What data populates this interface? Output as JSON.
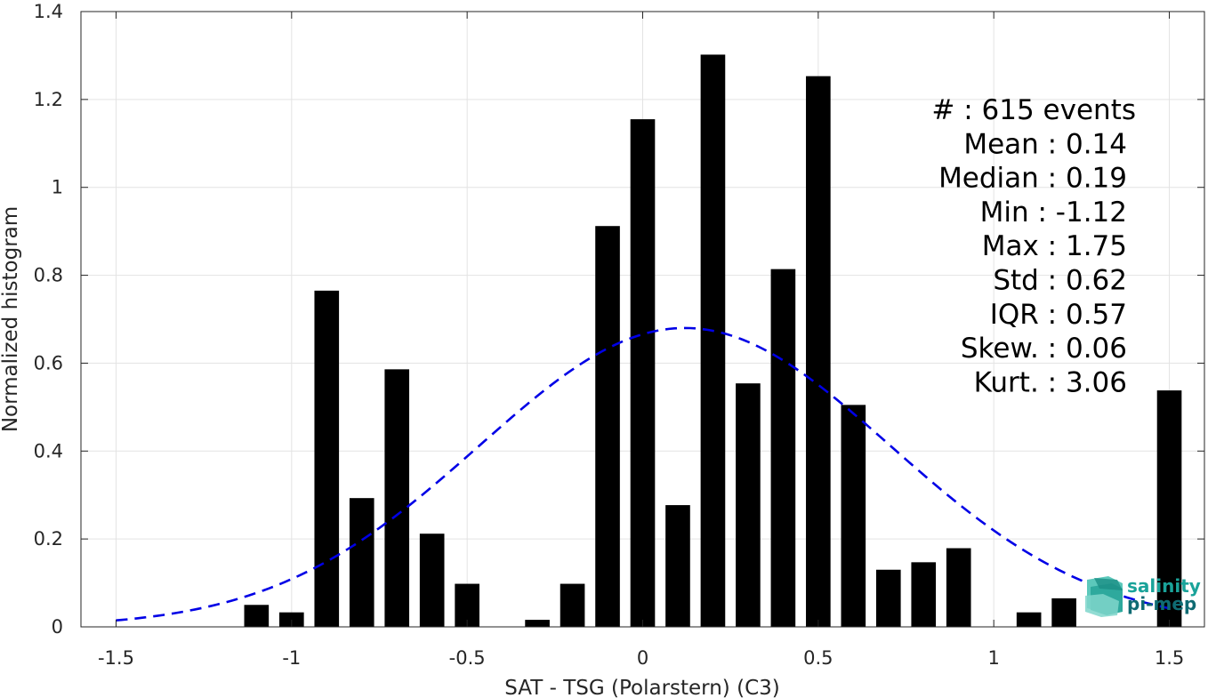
{
  "chart_data": {
    "type": "bar",
    "xlabel": "SAT - TSG (Polarstern) (C3)",
    "ylabel": "Normalized histogram",
    "xlim": [
      -1.6,
      1.6
    ],
    "ylim": [
      0,
      1.4
    ],
    "grid": true,
    "x_ticks": [
      -1.5,
      -1,
      -0.5,
      0,
      0.5,
      1,
      1.5
    ],
    "x_tick_labels": [
      "-1.5",
      "-1",
      "-0.5",
      "0",
      "0.5",
      "1",
      "1.5"
    ],
    "y_ticks": [
      0,
      0.2,
      0.4,
      0.6,
      0.8,
      1,
      1.2,
      1.4
    ],
    "y_tick_labels": [
      "0",
      "0.2",
      "0.4",
      "0.6",
      "0.8",
      "1",
      "1.2",
      "1.4"
    ],
    "bar_width": 0.07,
    "bar_color": "#000000",
    "bars": [
      {
        "x": -1.1,
        "y": 0.05
      },
      {
        "x": -1.0,
        "y": 0.033
      },
      {
        "x": -0.9,
        "y": 0.765
      },
      {
        "x": -0.8,
        "y": 0.293
      },
      {
        "x": -0.7,
        "y": 0.586
      },
      {
        "x": -0.6,
        "y": 0.212
      },
      {
        "x": -0.5,
        "y": 0.098
      },
      {
        "x": -0.3,
        "y": 0.016
      },
      {
        "x": -0.2,
        "y": 0.098
      },
      {
        "x": -0.1,
        "y": 0.912
      },
      {
        "x": 0.0,
        "y": 1.155
      },
      {
        "x": 0.1,
        "y": 0.277
      },
      {
        "x": 0.2,
        "y": 1.302
      },
      {
        "x": 0.3,
        "y": 0.554
      },
      {
        "x": 0.4,
        "y": 0.814
      },
      {
        "x": 0.5,
        "y": 1.253
      },
      {
        "x": 0.6,
        "y": 0.505
      },
      {
        "x": 0.7,
        "y": 0.13
      },
      {
        "x": 0.8,
        "y": 0.147
      },
      {
        "x": 0.9,
        "y": 0.179
      },
      {
        "x": 1.1,
        "y": 0.033
      },
      {
        "x": 1.2,
        "y": 0.065
      },
      {
        "x": 1.5,
        "y": 0.538
      }
    ],
    "fit_curve": {
      "type": "gaussian",
      "mean": 0.12,
      "std": 0.585,
      "peak": 0.68,
      "x_range": [
        -1.5,
        1.5
      ],
      "color": "#0000e6",
      "style": "dashed"
    },
    "stats": [
      "#  : 615 events",
      "Mean : 0.14",
      "Median : 0.19",
      "Min : -1.12",
      "Max : 1.75",
      "Std : 0.62",
      "IQR : 0.57",
      "Skew. : 0.06",
      "Kurt. : 3.06"
    ]
  },
  "logo": {
    "line1": "salinity",
    "line2": "pi-mep",
    "color1": "#1aa39a",
    "color2": "#0f6b73"
  }
}
